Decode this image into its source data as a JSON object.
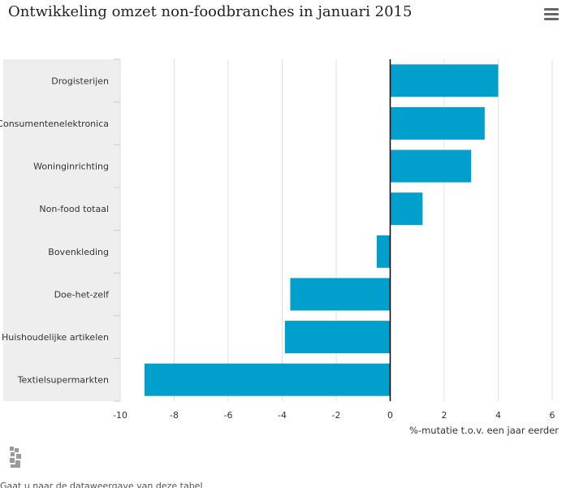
{
  "title": "Ontwikkeling omzet non-foodbranches in januari 2015",
  "menu_icon": "hamburger-menu-icon",
  "logo_icon": "cbs-logo-icon",
  "footer_text": "Gaat u naar de dataweergave van deze tabel",
  "colors": {
    "bar": "#009fcc",
    "category_band": "#eeeeee",
    "grid": "#e0e0e0",
    "zero_line": "#000000"
  },
  "chart_data": {
    "type": "bar",
    "orientation": "horizontal",
    "title": "Ontwikkeling omzet non-foodbranches in januari 2015",
    "xlabel": "%-mutatie t.o.v. een jaar eerder",
    "ylabel": "",
    "categories": [
      "Drogisterijen",
      "Consumentenelektronica",
      "Woninginrichting",
      "Non-food totaal",
      "Bovenkleding",
      "Doe-het-zelf",
      "Huishoudelijke artikelen",
      "Textielsupermarkten"
    ],
    "values": [
      4.0,
      3.5,
      3.0,
      1.2,
      -0.5,
      -3.7,
      -3.9,
      -9.1
    ],
    "xlim": [
      -10,
      6
    ],
    "xticks": [
      -10,
      -8,
      -6,
      -4,
      -2,
      0,
      2,
      4,
      6
    ],
    "grid": true,
    "legend": "none"
  }
}
